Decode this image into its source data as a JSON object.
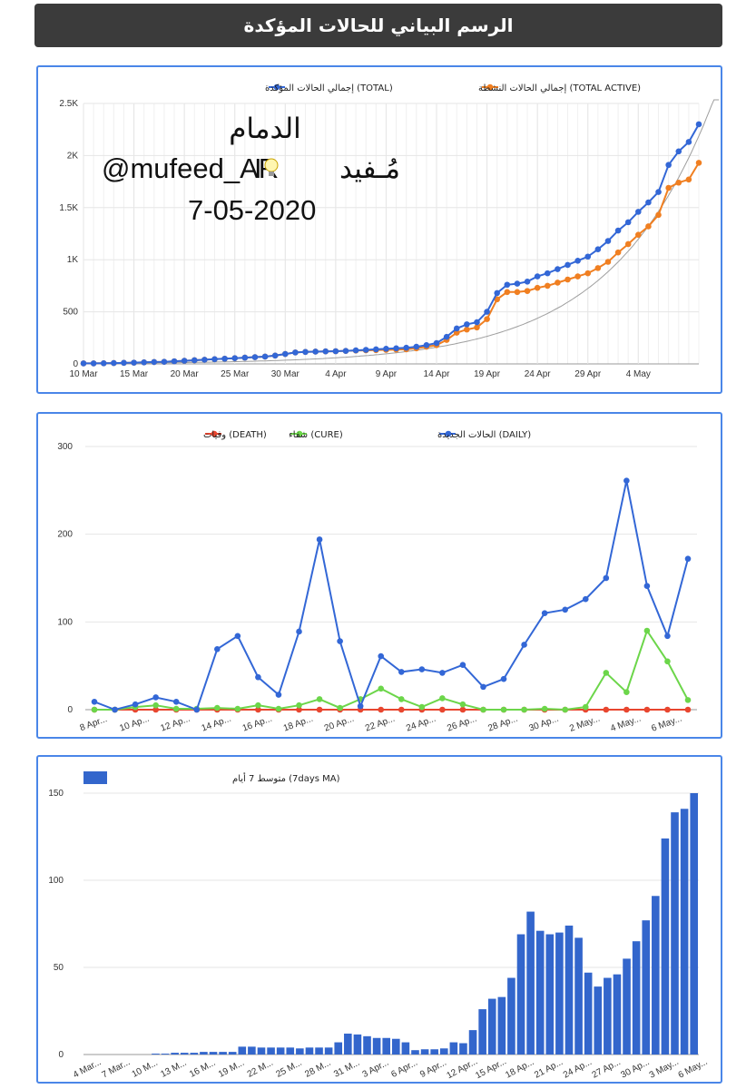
{
  "header": {
    "title": "الرسم البياني للحالات المؤكدة"
  },
  "watermark": {
    "city": "الدمام",
    "handle_name": "مُـفيد",
    "handle_sep": "I",
    "handle_user": "@mufeed_AR",
    "date": "7-05-2020"
  },
  "colors": {
    "blue": "#3367d6",
    "orange": "#f07f21",
    "red": "#e8462f",
    "green": "#6cd64a",
    "bar": "#3366cc",
    "grid": "#e6e6e6"
  },
  "chart_data": [
    {
      "type": "line",
      "title": "",
      "legend": [
        "(TOTAL) إجمالي الحالات المؤكدة",
        "(TOTAL ACTIVE) إجمالي الحالات النشطة"
      ],
      "x_tick_labels": [
        "10 Mar",
        "15 Mar",
        "20 Mar",
        "25 Mar",
        "30 Mar",
        "4 Apr",
        "9 Apr",
        "14 Apr",
        "19 Apr",
        "24 Apr",
        "29 Apr",
        "4 May"
      ],
      "y_tick_labels": [
        "0",
        "500",
        "1K",
        "1.5K",
        "2K",
        "2.5K"
      ],
      "ylim": [
        0,
        2500
      ],
      "start_date": "10 Mar",
      "series": [
        {
          "name": "(TOTAL) إجمالي الحالات المؤكدة",
          "values": [
            5,
            5,
            6,
            8,
            10,
            12,
            15,
            18,
            20,
            25,
            30,
            35,
            40,
            45,
            50,
            55,
            60,
            65,
            70,
            80,
            95,
            110,
            115,
            118,
            120,
            122,
            125,
            130,
            135,
            140,
            145,
            150,
            155,
            165,
            180,
            200,
            260,
            340,
            380,
            400,
            500,
            680,
            760,
            770,
            790,
            840,
            870,
            910,
            950,
            990,
            1030,
            1100,
            1180,
            1280,
            1360,
            1460,
            1550,
            1650,
            1910,
            2040,
            2130,
            2300
          ]
        },
        {
          "name": "(TOTAL ACTIVE) إجمالي الحالات النشطة",
          "values": [
            5,
            5,
            6,
            8,
            10,
            12,
            15,
            18,
            20,
            25,
            30,
            35,
            40,
            45,
            50,
            55,
            60,
            65,
            70,
            80,
            95,
            110,
            115,
            118,
            120,
            122,
            125,
            128,
            130,
            132,
            135,
            138,
            140,
            150,
            165,
            180,
            230,
            300,
            330,
            350,
            430,
            620,
            690,
            690,
            700,
            730,
            750,
            780,
            810,
            840,
            870,
            920,
            980,
            1070,
            1150,
            1240,
            1320,
            1430,
            1690,
            1740,
            1770,
            1930
          ]
        }
      ],
      "trendline": "exponential"
    },
    {
      "type": "line",
      "title": "",
      "legend": [
        "(DEATH) وفيات",
        "(CURE) شفاء",
        "(DAILY) الحالات الجديدة"
      ],
      "x_tick_labels": [
        "8 Apr...",
        "10 Ap...",
        "12 Ap...",
        "14 Ap...",
        "16 Ap...",
        "18 Ap...",
        "20 Ap...",
        "22 Ap...",
        "24 Ap...",
        "26 Ap...",
        "28 Ap...",
        "30 Ap...",
        "2 May...",
        "4 May...",
        "6 May..."
      ],
      "y_tick_labels": [
        "0",
        "100",
        "200",
        "300"
      ],
      "ylim": [
        0,
        300
      ],
      "series": [
        {
          "name": "(DEATH) وفيات",
          "values": [
            0,
            0,
            0,
            0,
            0,
            0,
            0,
            0,
            0,
            0,
            0,
            0,
            0,
            0,
            0,
            0,
            0,
            0,
            0,
            0,
            0,
            0,
            0,
            0,
            0,
            0,
            0,
            0,
            0,
            0
          ]
        },
        {
          "name": "(CURE) شفاء",
          "values": [
            0,
            0,
            3,
            5,
            1,
            1,
            2,
            1,
            5,
            1,
            5,
            12,
            2,
            12,
            24,
            12,
            3,
            13,
            6,
            0,
            0,
            0,
            1,
            0,
            3,
            42,
            20,
            90,
            55,
            11
          ]
        },
        {
          "name": "(DAILY) الحالات الجديدة",
          "values": [
            9,
            0,
            6,
            14,
            9,
            0,
            69,
            84,
            37,
            17,
            89,
            194,
            78,
            4,
            61,
            43,
            46,
            42,
            51,
            26,
            35,
            74,
            110,
            114,
            126,
            150,
            261,
            141,
            84,
            172
          ]
        }
      ]
    },
    {
      "type": "bar",
      "title": "",
      "legend": [
        "(7days MA) متوسط 7 أيام"
      ],
      "x_tick_labels": [
        "4 Mar...",
        "7 Mar...",
        "10 M...",
        "13 M...",
        "16 M...",
        "19 M...",
        "22 M...",
        "25 M...",
        "28 M...",
        "31 M...",
        "3 Apr...",
        "6 Apr...",
        "9 Apr...",
        "12 Apr...",
        "15 Apr...",
        "18 Ap...",
        "21 Ap...",
        "24 Ap...",
        "27 Ap...",
        "30 Ap...",
        "3 May...",
        "6 May..."
      ],
      "y_tick_labels": [
        "0",
        "50",
        "100",
        "150"
      ],
      "ylim": [
        0,
        150
      ],
      "series": [
        {
          "name": "(7days MA) متوسط 7 أيام",
          "values": [
            0,
            0,
            0,
            0,
            0,
            0,
            0,
            0.5,
            0.5,
            1,
            1,
            1,
            1.5,
            1.5,
            1.5,
            1.5,
            4.5,
            4.5,
            4,
            4,
            4,
            4,
            3.5,
            4,
            4,
            4,
            7,
            12,
            11.5,
            10.5,
            9.5,
            9.5,
            9,
            7,
            2.5,
            3,
            3,
            3.5,
            7,
            6.5,
            14,
            26,
            32,
            33,
            44,
            69,
            82,
            71,
            69,
            70,
            74,
            67,
            47,
            39,
            44,
            46,
            55,
            65,
            77,
            91,
            124,
            139,
            141,
            150
          ]
        }
      ]
    }
  ]
}
